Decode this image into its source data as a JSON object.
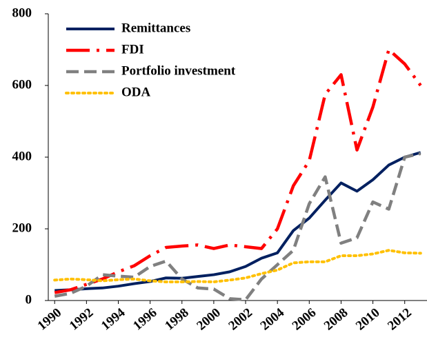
{
  "chart_data": {
    "type": "line",
    "x": [
      1990,
      1991,
      1992,
      1993,
      1994,
      1995,
      1996,
      1997,
      1998,
      1999,
      2000,
      2001,
      2002,
      2003,
      2004,
      2005,
      2006,
      2007,
      2008,
      2009,
      2010,
      2011,
      2012,
      2013
    ],
    "xlim": [
      1989.6,
      2013.4
    ],
    "xticks": [
      1990,
      1992,
      1994,
      1996,
      1998,
      2000,
      2002,
      2004,
      2006,
      2008,
      2010,
      2012
    ],
    "ylim": [
      0,
      800
    ],
    "yticks": [
      0,
      200,
      400,
      600,
      800
    ],
    "legend": "upper-left",
    "series": [
      {
        "name": "Remittances",
        "color": "#002060",
        "dash": "solid",
        "values": [
          28,
          30,
          33,
          35,
          40,
          47,
          53,
          63,
          62,
          67,
          72,
          80,
          95,
          118,
          133,
          195,
          230,
          280,
          328,
          305,
          337,
          378,
          400,
          413
        ]
      },
      {
        "name": "FDI",
        "color": "#ff0000",
        "dash": "dashdot",
        "values": [
          22,
          30,
          45,
          60,
          80,
          97,
          125,
          148,
          152,
          155,
          145,
          155,
          150,
          145,
          200,
          320,
          390,
          575,
          630,
          420,
          540,
          700,
          660,
          600
        ]
      },
      {
        "name": "Portfolio investment",
        "color": "#808080",
        "dash": "dash",
        "values": [
          12,
          20,
          40,
          72,
          68,
          65,
          95,
          110,
          60,
          35,
          32,
          5,
          2,
          60,
          100,
          140,
          270,
          345,
          160,
          175,
          275,
          255,
          400,
          410
        ]
      },
      {
        "name": "ODA",
        "color": "#ffc000",
        "dash": "dot",
        "values": [
          57,
          60,
          58,
          55,
          58,
          60,
          55,
          52,
          52,
          53,
          52,
          57,
          63,
          75,
          85,
          105,
          108,
          108,
          125,
          125,
          130,
          140,
          133,
          132
        ]
      }
    ]
  }
}
